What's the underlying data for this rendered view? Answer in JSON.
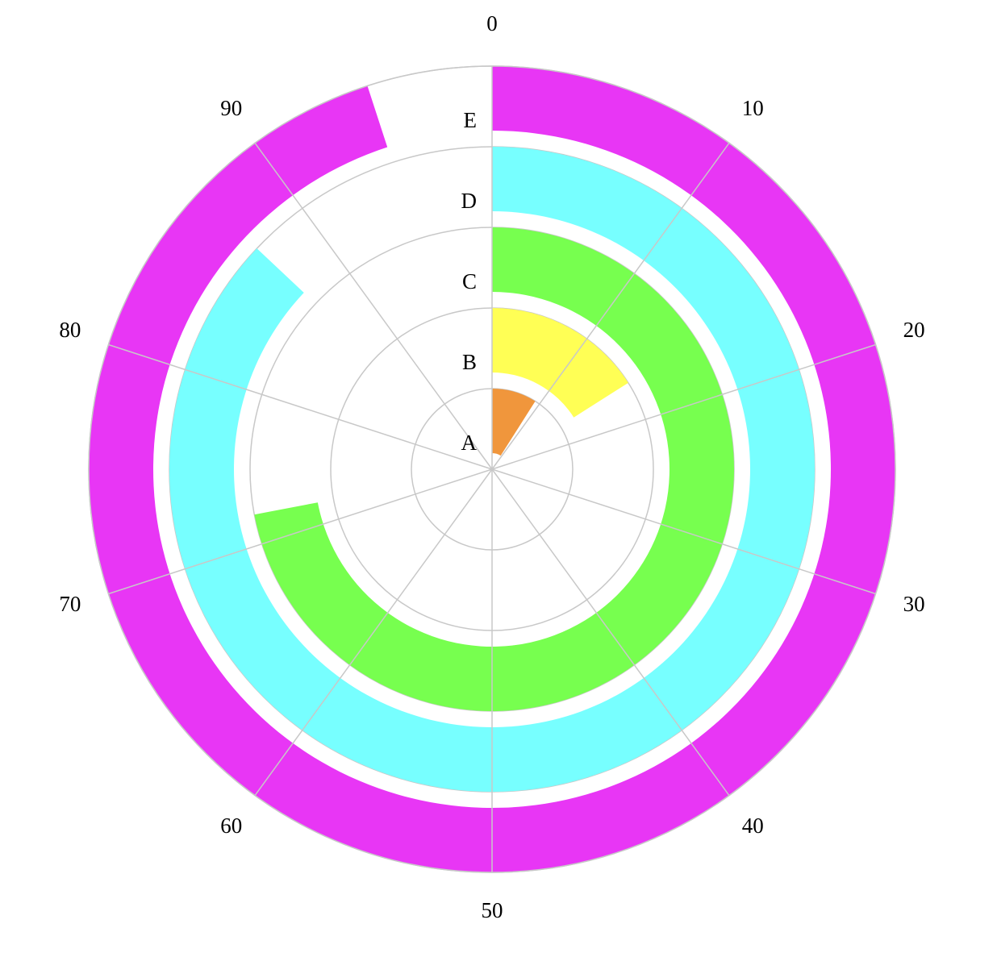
{
  "chart_data": {
    "type": "radial-bar",
    "title": "",
    "categories": [
      "A",
      "B",
      "C",
      "D",
      "E"
    ],
    "values": [
      9,
      16,
      72,
      87,
      95
    ],
    "colors": [
      "#F0963C",
      "#FFFF55",
      "#77FF4F",
      "#77FFFF",
      "#E836F5"
    ],
    "angle_range": [
      0,
      100
    ],
    "angle_ticks": [
      "0",
      "10",
      "20",
      "30",
      "40",
      "50",
      "60",
      "70",
      "80",
      "90"
    ],
    "start_angle_position": "top",
    "direction": "clockwise",
    "grid": true
  }
}
